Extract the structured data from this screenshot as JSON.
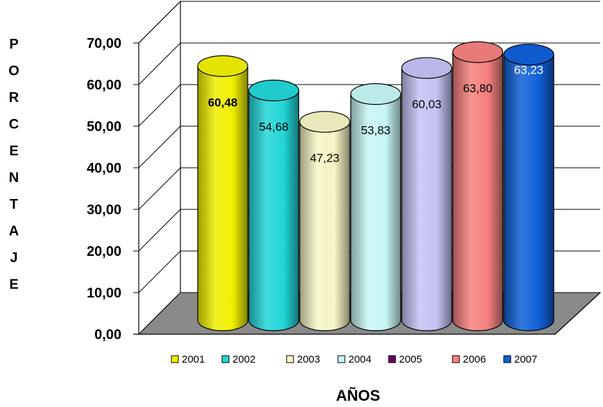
{
  "chart_data": {
    "type": "bar",
    "style": "3d-cylinder",
    "categories": [
      "2001",
      "2002",
      "2003",
      "2004",
      "2005",
      "2006",
      "2007"
    ],
    "series": [
      {
        "name": "2001",
        "value": 60.48,
        "color": "#F0F000",
        "label_bold": true
      },
      {
        "name": "2002",
        "value": 54.68,
        "color": "#22D6D8",
        "label_bold": false
      },
      {
        "name": "2003",
        "value": 47.23,
        "color": "#F6F4C4",
        "label_bold": false
      },
      {
        "name": "2004",
        "value": 53.83,
        "color": "#C6F6F4",
        "label_bold": false
      },
      {
        "name": "2005",
        "value": 60.03,
        "color": "#C4C2F4",
        "legend_color": "#660066",
        "label_bold": false
      },
      {
        "name": "2006",
        "value": 63.8,
        "color": "#F4807E",
        "label_bold": false
      },
      {
        "name": "2007",
        "value": 63.23,
        "color": "#1060D8",
        "label_bold": false
      }
    ],
    "data_labels": [
      "60,48",
      "54,68",
      "47,23",
      "53,83",
      "60,03",
      "63,80",
      "63,23"
    ],
    "y_ticks": [
      "0,00",
      "10,00",
      "20,00",
      "30,00",
      "40,00",
      "50,00",
      "60,00",
      "70,00"
    ],
    "ylim": [
      0,
      70
    ],
    "ylabel": "PORCENTAJE",
    "xlabel": "AÑOS",
    "grid": true,
    "legend_position": "bottom"
  }
}
